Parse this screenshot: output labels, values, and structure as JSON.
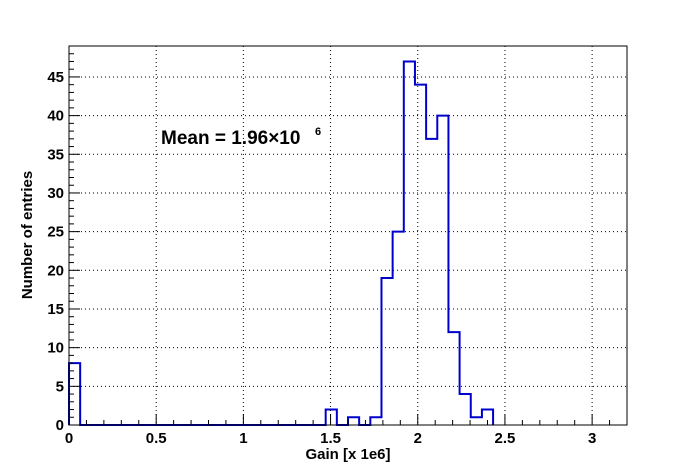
{
  "chart_data": {
    "type": "histogram",
    "xlabel": "Gain [x 1e6]",
    "ylabel": "Number of entries",
    "xlim": [
      0,
      3.2
    ],
    "ylim": [
      0,
      49
    ],
    "grid": true,
    "x_tick_labels": [
      "0",
      "0.5",
      "1",
      "1.5",
      "2",
      "2.5",
      "3"
    ],
    "y_tick_labels": [
      "0",
      "5",
      "10",
      "15",
      "20",
      "25",
      "30",
      "35",
      "40",
      "45"
    ],
    "bin_width": 0.064,
    "bins": [
      {
        "x": 0.0,
        "value": 8
      },
      {
        "x": 1.472,
        "value": 2
      },
      {
        "x": 1.6,
        "value": 1
      },
      {
        "x": 1.728,
        "value": 1
      },
      {
        "x": 1.792,
        "value": 19
      },
      {
        "x": 1.856,
        "value": 25
      },
      {
        "x": 1.92,
        "value": 47
      },
      {
        "x": 1.984,
        "value": 44
      },
      {
        "x": 2.048,
        "value": 37
      },
      {
        "x": 2.112,
        "value": 40
      },
      {
        "x": 2.176,
        "value": 12
      },
      {
        "x": 2.24,
        "value": 4
      },
      {
        "x": 2.304,
        "value": 1
      },
      {
        "x": 2.368,
        "value": 2
      }
    ],
    "annotation": {
      "text": "Mean = 1.96×10",
      "superscript": "6"
    },
    "line_color": "#0000cc"
  }
}
